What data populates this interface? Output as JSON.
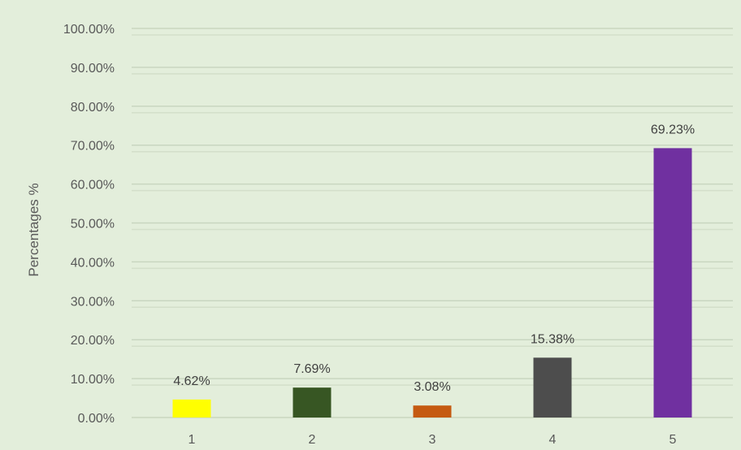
{
  "chart_data": {
    "type": "bar",
    "title": "",
    "xlabel": "",
    "ylabel": "Percentages %",
    "ylim": [
      0,
      100
    ],
    "yticks": [
      "0.00%",
      "10.00%",
      "20.00%",
      "30.00%",
      "40.00%",
      "50.00%",
      "60.00%",
      "70.00%",
      "80.00%",
      "90.00%",
      "100.00%"
    ],
    "categories": [
      "1",
      "2",
      "3",
      "4",
      "5"
    ],
    "values": [
      4.62,
      7.69,
      3.08,
      15.38,
      69.23
    ],
    "data_labels": [
      "4.62%",
      "7.69%",
      "3.08%",
      "15.38%",
      "69.23%"
    ],
    "colors": [
      "#ffff00",
      "#375623",
      "#c55a11",
      "#4d4d4d",
      "#7030a0"
    ],
    "grid": true,
    "legend": "none",
    "background": "#e3eedb"
  }
}
